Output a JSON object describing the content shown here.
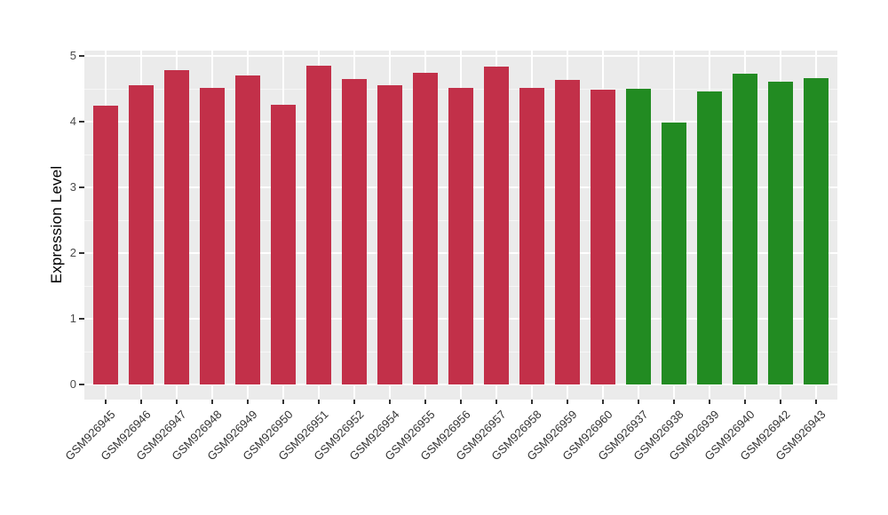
{
  "figure": {
    "background": "#FFFFFF",
    "panel_background": "#EBEBEB",
    "grid_color": "#FFFFFF",
    "tick_color": "#333333",
    "axis_text_color": "#4A4A4A"
  },
  "chart_data": {
    "type": "bar",
    "title": "",
    "xlabel": "",
    "ylabel": "Expression Level",
    "ylim": [
      0,
      5.08
    ],
    "yticks": [
      0,
      1,
      2,
      3,
      4,
      5
    ],
    "yticks_minor": [
      0.5,
      1.5,
      2.5,
      3.5,
      4.5
    ],
    "grid": true,
    "legend": false,
    "bar_width_fraction": 0.7,
    "group_colors": {
      "group_red": "#C23049",
      "group_green": "#228B22"
    },
    "categories": [
      "GSM926945",
      "GSM926946",
      "GSM926947",
      "GSM926948",
      "GSM926949",
      "GSM926950",
      "GSM926951",
      "GSM926952",
      "GSM926954",
      "GSM926955",
      "GSM926956",
      "GSM926957",
      "GSM926958",
      "GSM926959",
      "GSM926960",
      "GSM926937",
      "GSM926938",
      "GSM926939",
      "GSM926940",
      "GSM926942",
      "GSM926943"
    ],
    "values": [
      4.25,
      4.55,
      4.79,
      4.51,
      4.7,
      4.26,
      4.85,
      4.65,
      4.56,
      4.74,
      4.51,
      4.84,
      4.51,
      4.63,
      4.49,
      4.5,
      3.98,
      4.46,
      4.73,
      4.61,
      4.66
    ],
    "groups": [
      "group_red",
      "group_red",
      "group_red",
      "group_red",
      "group_red",
      "group_red",
      "group_red",
      "group_red",
      "group_red",
      "group_red",
      "group_red",
      "group_red",
      "group_red",
      "group_red",
      "group_red",
      "group_green",
      "group_green",
      "group_green",
      "group_green",
      "group_green",
      "group_green"
    ]
  }
}
